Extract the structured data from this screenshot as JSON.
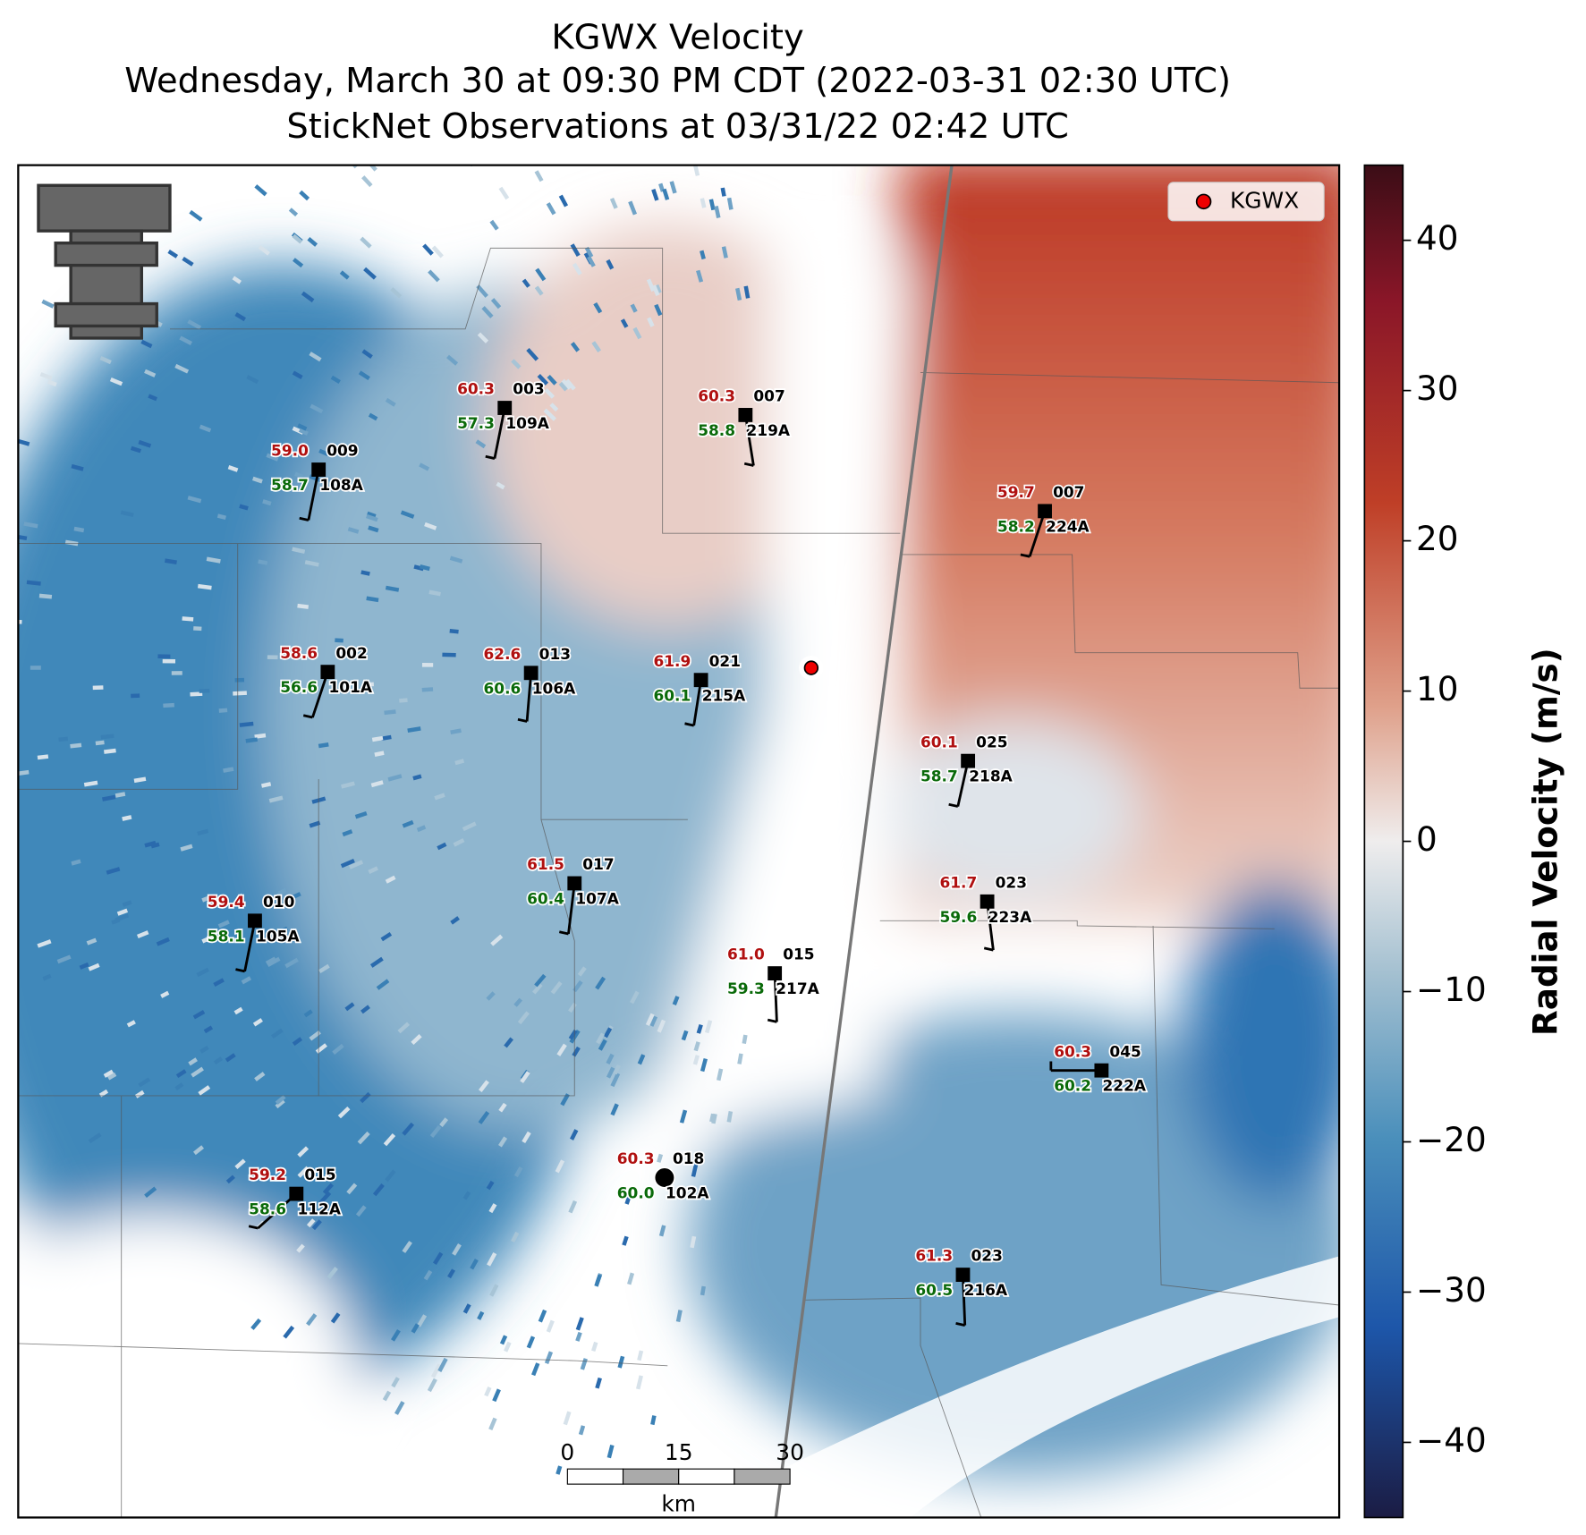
{
  "header": {
    "title": [
      "KGWX Velocity",
      "Wednesday, March 30 at 09:30 PM CDT (2022-03-31 02:30 UTC)",
      "StickNet Observations at 03/31/22 02:42 UTC"
    ]
  },
  "legend": {
    "entries": [
      "KGWX"
    ]
  },
  "colorbar": {
    "label": "Radial Velocity (m/s)",
    "lim": [
      -45,
      45
    ],
    "ticks": [
      {
        "value": -40,
        "label": "−40"
      },
      {
        "value": -30,
        "label": "−30"
      },
      {
        "value": -20,
        "label": "−20"
      },
      {
        "value": -10,
        "label": "−10"
      },
      0,
      10,
      20,
      30,
      40
    ]
  },
  "scale_bar": {
    "ticks": [
      0,
      15,
      30
    ],
    "unit": "km"
  },
  "stations": [
    {
      "temp": "59.0",
      "dew": "58.7",
      "id": "009",
      "probe": "108A"
    },
    {
      "temp": "60.3",
      "dew": "57.3",
      "id": "003",
      "probe": "109A"
    },
    {
      "temp": "60.3",
      "dew": "58.8",
      "id": "007",
      "probe": "219A"
    },
    {
      "temp": "59.7",
      "dew": "58.2",
      "id": "007",
      "probe": "224A"
    },
    {
      "temp": "58.6",
      "dew": "56.6",
      "id": "002",
      "probe": "101A"
    },
    {
      "temp": "62.6",
      "dew": "60.6",
      "id": "013",
      "probe": "106A"
    },
    {
      "temp": "61.9",
      "dew": "60.1",
      "id": "021",
      "probe": "215A"
    },
    {
      "temp": "60.1",
      "dew": "58.7",
      "id": "025",
      "probe": "218A"
    },
    {
      "temp": "61.5",
      "dew": "60.4",
      "id": "017",
      "probe": "107A"
    },
    {
      "temp": "61.7",
      "dew": "59.6",
      "id": "023",
      "probe": "223A"
    },
    {
      "temp": "59.4",
      "dew": "58.1",
      "id": "010",
      "probe": "105A"
    },
    {
      "temp": "61.0",
      "dew": "59.3",
      "id": "015",
      "probe": "217A"
    },
    {
      "temp": "60.3",
      "dew": "60.2",
      "id": "045",
      "probe": "222A"
    },
    {
      "temp": "60.3",
      "dew": "60.0",
      "id": "018",
      "probe": "102A"
    },
    {
      "temp": "59.2",
      "dew": "58.6",
      "id": "015",
      "probe": "112A"
    },
    {
      "temp": "61.3",
      "dew": "60.5",
      "id": "023",
      "probe": "216A"
    }
  ]
}
